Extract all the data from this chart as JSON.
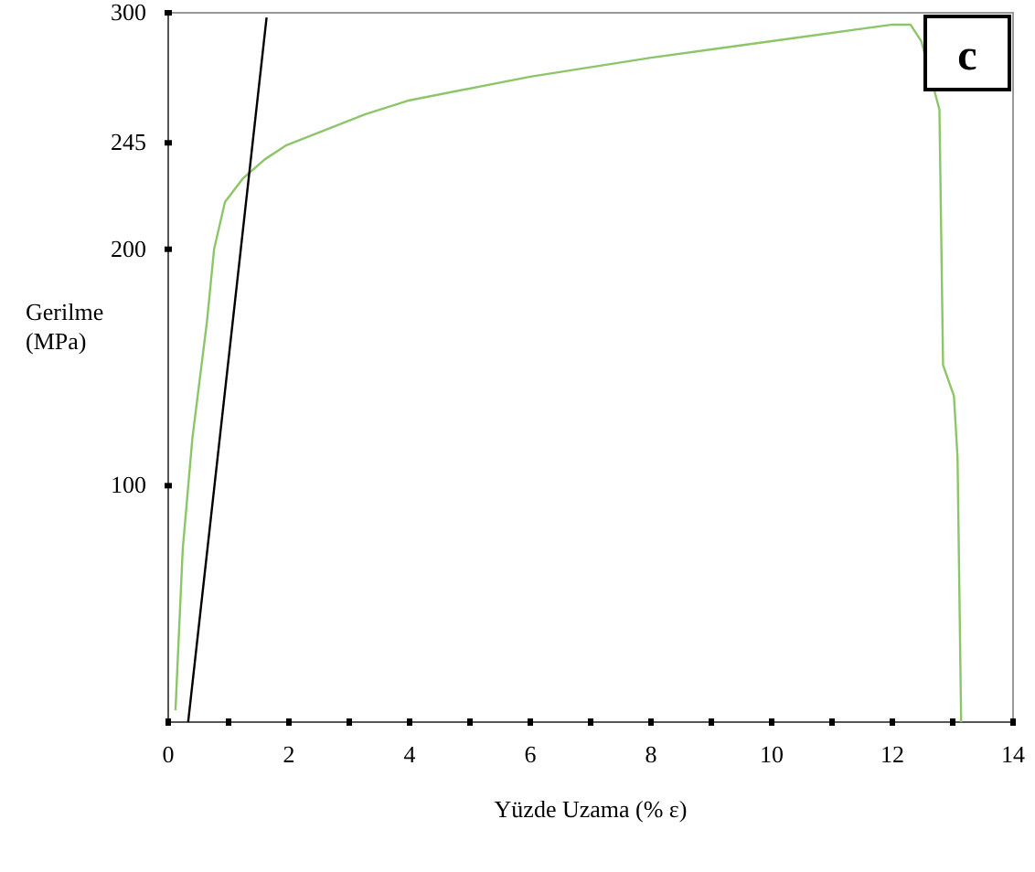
{
  "chart_data": {
    "type": "line",
    "xlabel": "Yüzde Uzama (% ε)",
    "ylabel": "Gerilme (MPa)",
    "annotations": [
      "c"
    ],
    "xlim": [
      0,
      14
    ],
    "ylim": [
      0,
      300
    ],
    "xticks": [
      0,
      {
        "value": 1,
        "label": null
      },
      2,
      {
        "value": 3,
        "label": null
      },
      4,
      {
        "value": 5,
        "label": null
      },
      6,
      {
        "value": 7,
        "label": null
      },
      8,
      {
        "value": 9,
        "label": null
      },
      10,
      {
        "value": 11,
        "label": null
      },
      12,
      {
        "value": 13,
        "label": null
      },
      14
    ],
    "yticks": [
      100,
      200,
      245,
      300
    ],
    "grid": false,
    "marker": "none",
    "line_style": "solid",
    "series": [
      {
        "color": "#8cc56a",
        "x": [
          0.12,
          0.24,
          0.4,
          0.64,
          0.76,
          0.94,
          1.24,
          1.6,
          1.96,
          3.26,
          4,
          6,
          8,
          10,
          12,
          12.3,
          12.48,
          12.78,
          12.84,
          13.02,
          13.08,
          13.14
        ],
        "values": [
          5,
          73,
          120,
          169,
          200,
          220,
          230,
          238,
          244,
          257,
          263,
          273,
          281,
          288,
          295,
          295,
          288,
          259,
          151,
          138,
          112,
          0
        ]
      },
      {
        "color": "#000000",
        "x": [
          0.33,
          1.63
        ],
        "values": [
          0,
          298
        ]
      }
    ]
  }
}
